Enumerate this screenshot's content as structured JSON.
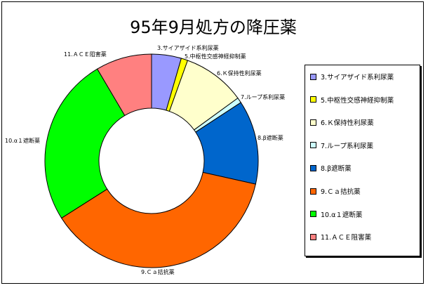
{
  "chart_data": {
    "type": "pie",
    "variant": "donut",
    "title": "95年9月処方の降圧薬",
    "legend_position": "right",
    "slices": [
      {
        "label": "3.サイアザイド系利尿薬",
        "legend": "3.サイアザイド系利尿薬",
        "value": 4.5,
        "color": "#9999ff"
      },
      {
        "label": "5.中枢性交感神経抑制薬",
        "legend": "5.中枢性交感神経抑制薬",
        "value": 1.0,
        "color": "#ffff00"
      },
      {
        "label": "6.Ｋ保持性利尿薬",
        "legend": "6.Ｋ保持性利尿薬",
        "value": 9.5,
        "color": "#ffffcc"
      },
      {
        "label": "7.ループ系利尿薬",
        "legend": "7.ループ系利尿薬",
        "value": 0.8,
        "color": "#ccffff"
      },
      {
        "label": "8.β遮断薬",
        "legend": "8.β遮断薬",
        "value": 12.7,
        "color": "#0066cc"
      },
      {
        "label": "9.Ｃａ拮抗薬",
        "legend": "9.Ｃａ拮抗薬",
        "value": 37.5,
        "color": "#ff6600"
      },
      {
        "label": "10.α１遮断薬",
        "legend": "10.α１遮断薬",
        "value": 25.5,
        "color": "#00ff00"
      },
      {
        "label": "11.ＡＣＥ阻害薬",
        "legend": "11.ＡＣＥ阻害薬",
        "value": 8.5,
        "color": "#ff8080"
      }
    ]
  }
}
